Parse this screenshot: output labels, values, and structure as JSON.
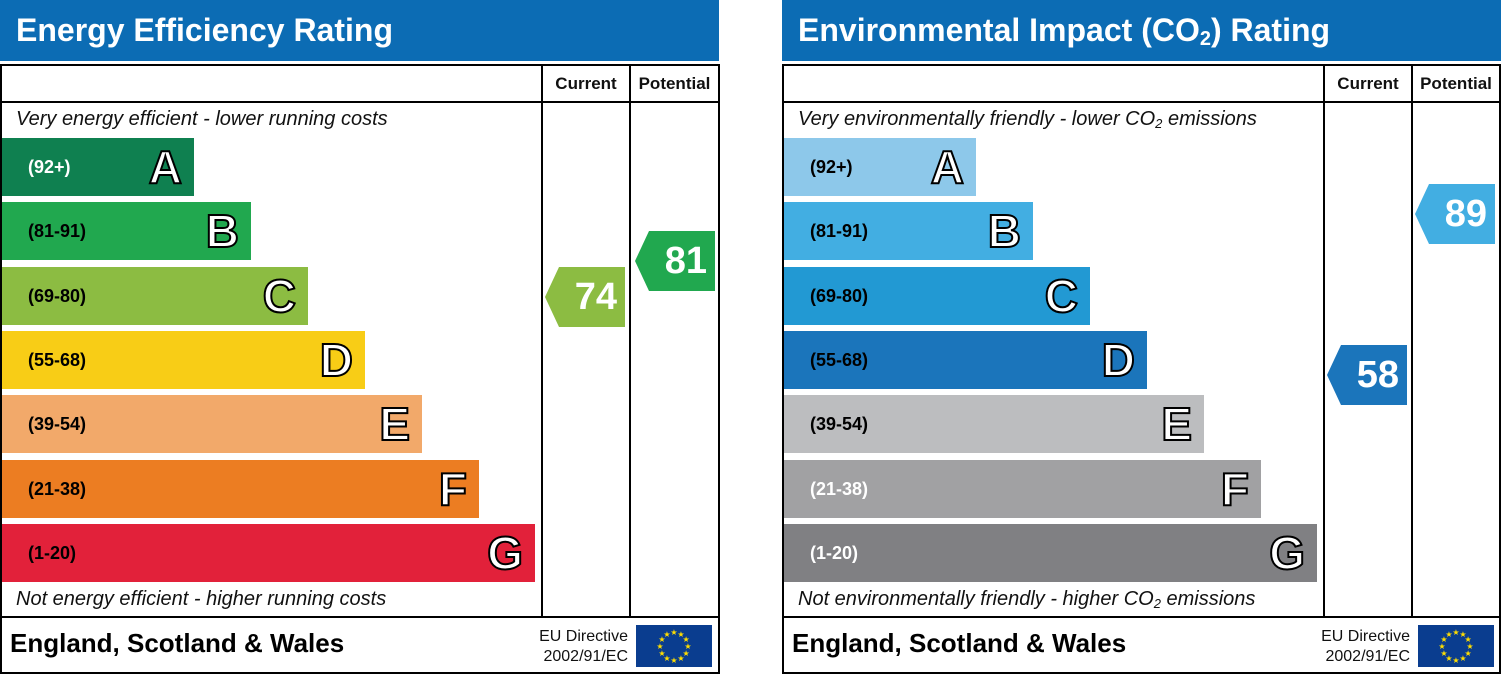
{
  "energy": {
    "title": "Energy Efficiency Rating",
    "col_current": "Current",
    "col_potential": "Potential",
    "top_note": "Very energy efficient - lower running costs",
    "bottom_note": "Not energy efficient - higher running costs",
    "bands": [
      {
        "range": "(92+)",
        "letter": "A",
        "color": "#0f8050",
        "text_color": "#ffffff"
      },
      {
        "range": "(81-91)",
        "letter": "B",
        "color": "#21a84f",
        "text_color": "#000000"
      },
      {
        "range": "(69-80)",
        "letter": "C",
        "color": "#8cbc42",
        "text_color": "#000000"
      },
      {
        "range": "(55-68)",
        "letter": "D",
        "color": "#f8cd16",
        "text_color": "#000000"
      },
      {
        "range": "(39-54)",
        "letter": "E",
        "color": "#f2a96a",
        "text_color": "#000000"
      },
      {
        "range": "(21-38)",
        "letter": "F",
        "color": "#ec7d22",
        "text_color": "#000000"
      },
      {
        "range": "(1-20)",
        "letter": "G",
        "color": "#e2213a",
        "text_color": "#000000"
      }
    ],
    "current": {
      "value": "74",
      "band": "C",
      "color": "#8cbc42"
    },
    "potential": {
      "value": "81",
      "band": "B",
      "color": "#21a84f"
    },
    "footer": "England, Scotland & Wales",
    "directive_line1": "EU Directive",
    "directive_line2": "2002/91/EC"
  },
  "environment": {
    "title_prefix": "Environmental Impact (CO",
    "title_sub": "2",
    "title_suffix": ") Rating",
    "col_current": "Current",
    "col_potential": "Potential",
    "top_note_prefix": "Very environmentally friendly - lower CO",
    "top_note_sub": "2",
    "top_note_suffix": " emissions",
    "bottom_note_prefix": "Not environmentally friendly - higher CO",
    "bottom_note_sub": "2",
    "bottom_note_suffix": " emissions",
    "bands": [
      {
        "range": "(92+)",
        "letter": "A",
        "color": "#8dc8ea",
        "text_color": "#000000"
      },
      {
        "range": "(81-91)",
        "letter": "B",
        "color": "#42aee2",
        "text_color": "#000000"
      },
      {
        "range": "(69-80)",
        "letter": "C",
        "color": "#2299d3",
        "text_color": "#000000"
      },
      {
        "range": "(55-68)",
        "letter": "D",
        "color": "#1b75bb",
        "text_color": "#000000"
      },
      {
        "range": "(39-54)",
        "letter": "E",
        "color": "#bcbdbf",
        "text_color": "#000000"
      },
      {
        "range": "(21-38)",
        "letter": "F",
        "color": "#a1a1a3",
        "text_color": "#ffffff"
      },
      {
        "range": "(1-20)",
        "letter": "G",
        "color": "#808083",
        "text_color": "#ffffff"
      }
    ],
    "current": {
      "value": "58",
      "band": "D",
      "color": "#1b75bb"
    },
    "potential": {
      "value": "89",
      "band": "B",
      "color": "#42aee2"
    },
    "footer": "England, Scotland & Wales",
    "directive_line1": "EU Directive",
    "directive_line2": "2002/91/EC"
  },
  "icons": {
    "eu_flag": "eu-flag-icon"
  }
}
